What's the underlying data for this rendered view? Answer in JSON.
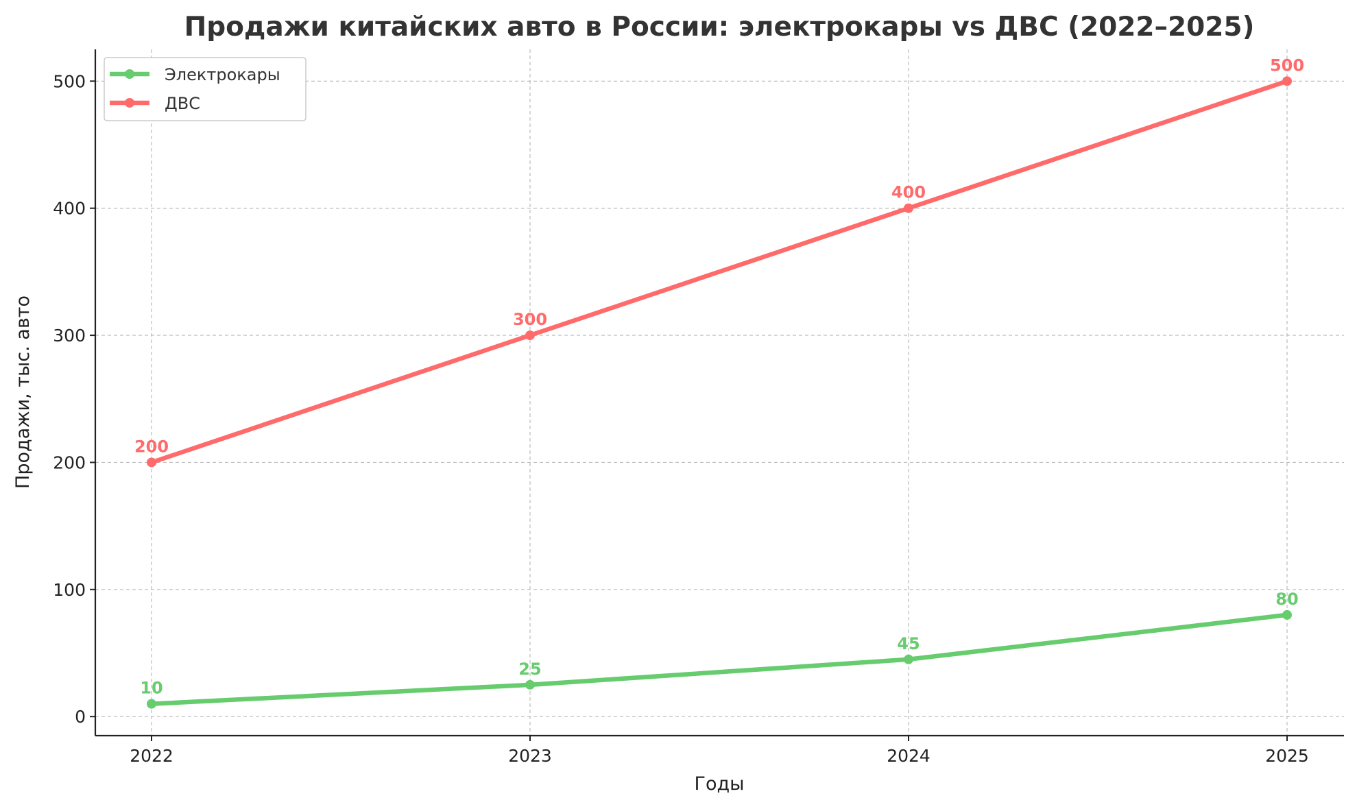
{
  "chart_data": {
    "type": "line",
    "title": "Продажи китайских авто в России: электрокары vs ДВС (2022–2025)",
    "xlabel": "Годы",
    "ylabel": "Продажи, тыс. авто",
    "categories": [
      "2022",
      "2023",
      "2024",
      "2025"
    ],
    "yticks": [
      "0",
      "100",
      "200",
      "300",
      "400",
      "500"
    ],
    "ylim": [
      -15,
      525
    ],
    "grid": true,
    "legend": "top-left",
    "series": [
      {
        "name": "Электрокары",
        "values": [
          10,
          25,
          45,
          80
        ],
        "color": "#66cc6e"
      },
      {
        "name": "ДВС",
        "values": [
          200,
          300,
          400,
          500
        ],
        "color": "#ff6b6b"
      }
    ]
  }
}
